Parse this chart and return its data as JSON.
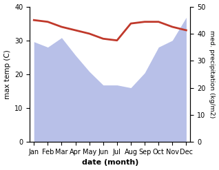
{
  "months": [
    "Jan",
    "Feb",
    "Mar",
    "Apr",
    "May",
    "Jun",
    "Jul",
    "Aug",
    "Sep",
    "Oct",
    "Nov",
    "Dec"
  ],
  "precipitation": [
    370,
    350,
    385,
    320,
    260,
    210,
    210,
    200,
    255,
    350,
    375,
    460
  ],
  "max_temp": [
    36,
    35.5,
    34,
    33,
    32,
    30.5,
    30,
    35,
    35.5,
    35.5,
    34,
    33
  ],
  "precip_fill_color": "#b8c0e8",
  "temp_color": "#c0392b",
  "xlabel": "date (month)",
  "ylabel_left": "max temp (C)",
  "ylabel_right": "med. precipitation (kg/m2)",
  "ylim_left": [
    0,
    40
  ],
  "ylim_right": [
    0,
    50
  ],
  "precip_ylim": [
    0,
    500
  ],
  "yticks_left": [
    0,
    10,
    20,
    30,
    40
  ],
  "yticks_right": [
    0,
    10,
    20,
    30,
    40,
    50
  ],
  "background_color": "#ffffff"
}
